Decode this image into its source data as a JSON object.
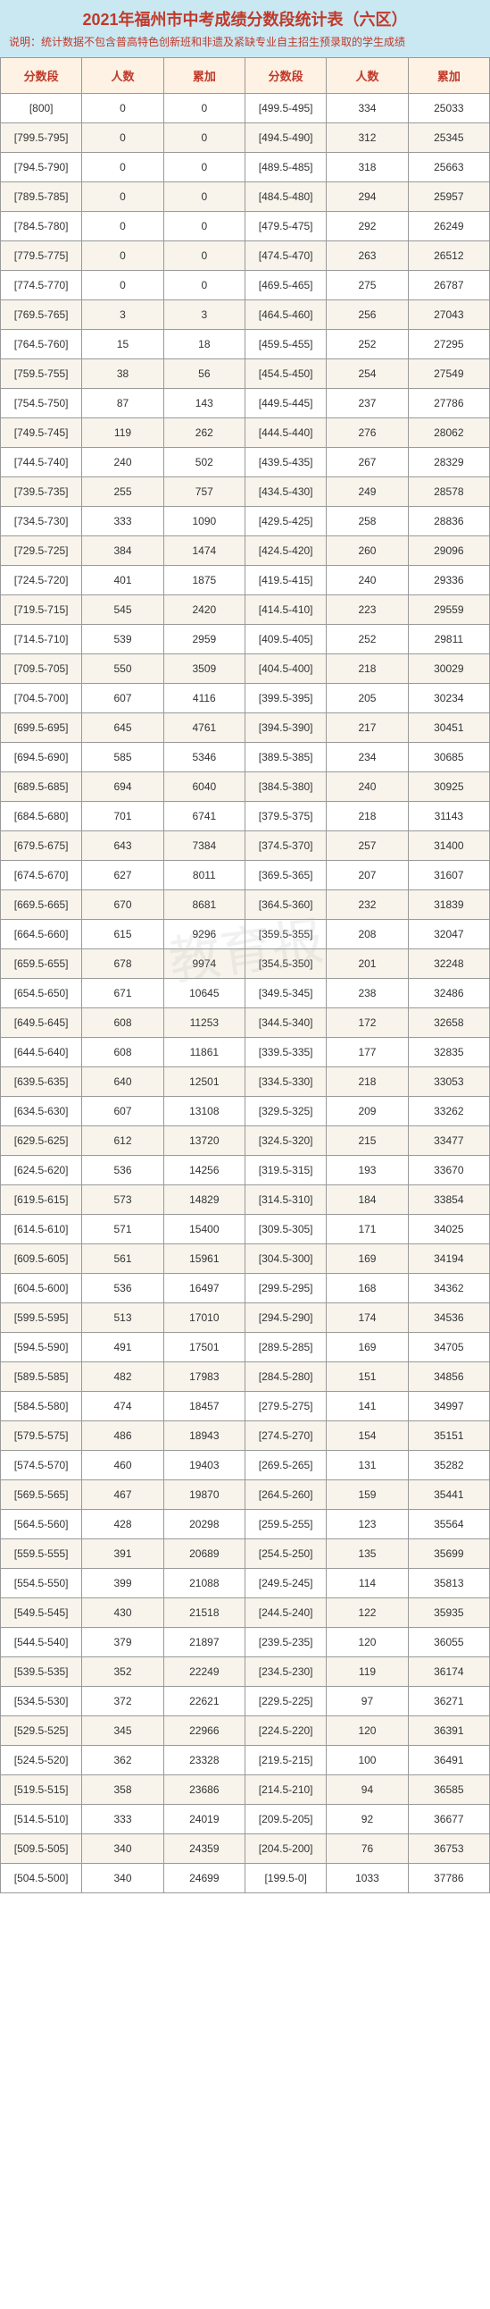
{
  "title": "2021年福州市中考成绩分数段统计表（六区）",
  "subtitle": "说明：统计数据不包含普高特色创新班和非遗及紧缺专业自主招生预录取的学生成绩",
  "watermark": "教育报",
  "colors": {
    "header_bg": "#c9e8f2",
    "header_text": "#c0392b",
    "th_bg": "#fdf2e3",
    "th_text": "#c0392b",
    "border": "#999999",
    "row_alt": "#f8f4ec"
  },
  "headers": [
    "分数段",
    "人数",
    "累加",
    "分数段",
    "人数",
    "累加"
  ],
  "rows": [
    [
      "[800]",
      "0",
      "0",
      "[499.5-495]",
      "334",
      "25033"
    ],
    [
      "[799.5-795]",
      "0",
      "0",
      "[494.5-490]",
      "312",
      "25345"
    ],
    [
      "[794.5-790]",
      "0",
      "0",
      "[489.5-485]",
      "318",
      "25663"
    ],
    [
      "[789.5-785]",
      "0",
      "0",
      "[484.5-480]",
      "294",
      "25957"
    ],
    [
      "[784.5-780]",
      "0",
      "0",
      "[479.5-475]",
      "292",
      "26249"
    ],
    [
      "[779.5-775]",
      "0",
      "0",
      "[474.5-470]",
      "263",
      "26512"
    ],
    [
      "[774.5-770]",
      "0",
      "0",
      "[469.5-465]",
      "275",
      "26787"
    ],
    [
      "[769.5-765]",
      "3",
      "3",
      "[464.5-460]",
      "256",
      "27043"
    ],
    [
      "[764.5-760]",
      "15",
      "18",
      "[459.5-455]",
      "252",
      "27295"
    ],
    [
      "[759.5-755]",
      "38",
      "56",
      "[454.5-450]",
      "254",
      "27549"
    ],
    [
      "[754.5-750]",
      "87",
      "143",
      "[449.5-445]",
      "237",
      "27786"
    ],
    [
      "[749.5-745]",
      "119",
      "262",
      "[444.5-440]",
      "276",
      "28062"
    ],
    [
      "[744.5-740]",
      "240",
      "502",
      "[439.5-435]",
      "267",
      "28329"
    ],
    [
      "[739.5-735]",
      "255",
      "757",
      "[434.5-430]",
      "249",
      "28578"
    ],
    [
      "[734.5-730]",
      "333",
      "1090",
      "[429.5-425]",
      "258",
      "28836"
    ],
    [
      "[729.5-725]",
      "384",
      "1474",
      "[424.5-420]",
      "260",
      "29096"
    ],
    [
      "[724.5-720]",
      "401",
      "1875",
      "[419.5-415]",
      "240",
      "29336"
    ],
    [
      "[719.5-715]",
      "545",
      "2420",
      "[414.5-410]",
      "223",
      "29559"
    ],
    [
      "[714.5-710]",
      "539",
      "2959",
      "[409.5-405]",
      "252",
      "29811"
    ],
    [
      "[709.5-705]",
      "550",
      "3509",
      "[404.5-400]",
      "218",
      "30029"
    ],
    [
      "[704.5-700]",
      "607",
      "4116",
      "[399.5-395]",
      "205",
      "30234"
    ],
    [
      "[699.5-695]",
      "645",
      "4761",
      "[394.5-390]",
      "217",
      "30451"
    ],
    [
      "[694.5-690]",
      "585",
      "5346",
      "[389.5-385]",
      "234",
      "30685"
    ],
    [
      "[689.5-685]",
      "694",
      "6040",
      "[384.5-380]",
      "240",
      "30925"
    ],
    [
      "[684.5-680]",
      "701",
      "6741",
      "[379.5-375]",
      "218",
      "31143"
    ],
    [
      "[679.5-675]",
      "643",
      "7384",
      "[374.5-370]",
      "257",
      "31400"
    ],
    [
      "[674.5-670]",
      "627",
      "8011",
      "[369.5-365]",
      "207",
      "31607"
    ],
    [
      "[669.5-665]",
      "670",
      "8681",
      "[364.5-360]",
      "232",
      "31839"
    ],
    [
      "[664.5-660]",
      "615",
      "9296",
      "[359.5-355]",
      "208",
      "32047"
    ],
    [
      "[659.5-655]",
      "678",
      "9974",
      "[354.5-350]",
      "201",
      "32248"
    ],
    [
      "[654.5-650]",
      "671",
      "10645",
      "[349.5-345]",
      "238",
      "32486"
    ],
    [
      "[649.5-645]",
      "608",
      "11253",
      "[344.5-340]",
      "172",
      "32658"
    ],
    [
      "[644.5-640]",
      "608",
      "11861",
      "[339.5-335]",
      "177",
      "32835"
    ],
    [
      "[639.5-635]",
      "640",
      "12501",
      "[334.5-330]",
      "218",
      "33053"
    ],
    [
      "[634.5-630]",
      "607",
      "13108",
      "[329.5-325]",
      "209",
      "33262"
    ],
    [
      "[629.5-625]",
      "612",
      "13720",
      "[324.5-320]",
      "215",
      "33477"
    ],
    [
      "[624.5-620]",
      "536",
      "14256",
      "[319.5-315]",
      "193",
      "33670"
    ],
    [
      "[619.5-615]",
      "573",
      "14829",
      "[314.5-310]",
      "184",
      "33854"
    ],
    [
      "[614.5-610]",
      "571",
      "15400",
      "[309.5-305]",
      "171",
      "34025"
    ],
    [
      "[609.5-605]",
      "561",
      "15961",
      "[304.5-300]",
      "169",
      "34194"
    ],
    [
      "[604.5-600]",
      "536",
      "16497",
      "[299.5-295]",
      "168",
      "34362"
    ],
    [
      "[599.5-595]",
      "513",
      "17010",
      "[294.5-290]",
      "174",
      "34536"
    ],
    [
      "[594.5-590]",
      "491",
      "17501",
      "[289.5-285]",
      "169",
      "34705"
    ],
    [
      "[589.5-585]",
      "482",
      "17983",
      "[284.5-280]",
      "151",
      "34856"
    ],
    [
      "[584.5-580]",
      "474",
      "18457",
      "[279.5-275]",
      "141",
      "34997"
    ],
    [
      "[579.5-575]",
      "486",
      "18943",
      "[274.5-270]",
      "154",
      "35151"
    ],
    [
      "[574.5-570]",
      "460",
      "19403",
      "[269.5-265]",
      "131",
      "35282"
    ],
    [
      "[569.5-565]",
      "467",
      "19870",
      "[264.5-260]",
      "159",
      "35441"
    ],
    [
      "[564.5-560]",
      "428",
      "20298",
      "[259.5-255]",
      "123",
      "35564"
    ],
    [
      "[559.5-555]",
      "391",
      "20689",
      "[254.5-250]",
      "135",
      "35699"
    ],
    [
      "[554.5-550]",
      "399",
      "21088",
      "[249.5-245]",
      "114",
      "35813"
    ],
    [
      "[549.5-545]",
      "430",
      "21518",
      "[244.5-240]",
      "122",
      "35935"
    ],
    [
      "[544.5-540]",
      "379",
      "21897",
      "[239.5-235]",
      "120",
      "36055"
    ],
    [
      "[539.5-535]",
      "352",
      "22249",
      "[234.5-230]",
      "119",
      "36174"
    ],
    [
      "[534.5-530]",
      "372",
      "22621",
      "[229.5-225]",
      "97",
      "36271"
    ],
    [
      "[529.5-525]",
      "345",
      "22966",
      "[224.5-220]",
      "120",
      "36391"
    ],
    [
      "[524.5-520]",
      "362",
      "23328",
      "[219.5-215]",
      "100",
      "36491"
    ],
    [
      "[519.5-515]",
      "358",
      "23686",
      "[214.5-210]",
      "94",
      "36585"
    ],
    [
      "[514.5-510]",
      "333",
      "24019",
      "[209.5-205]",
      "92",
      "36677"
    ],
    [
      "[509.5-505]",
      "340",
      "24359",
      "[204.5-200]",
      "76",
      "36753"
    ],
    [
      "[504.5-500]",
      "340",
      "24699",
      "[199.5-0]",
      "1033",
      "37786"
    ]
  ]
}
